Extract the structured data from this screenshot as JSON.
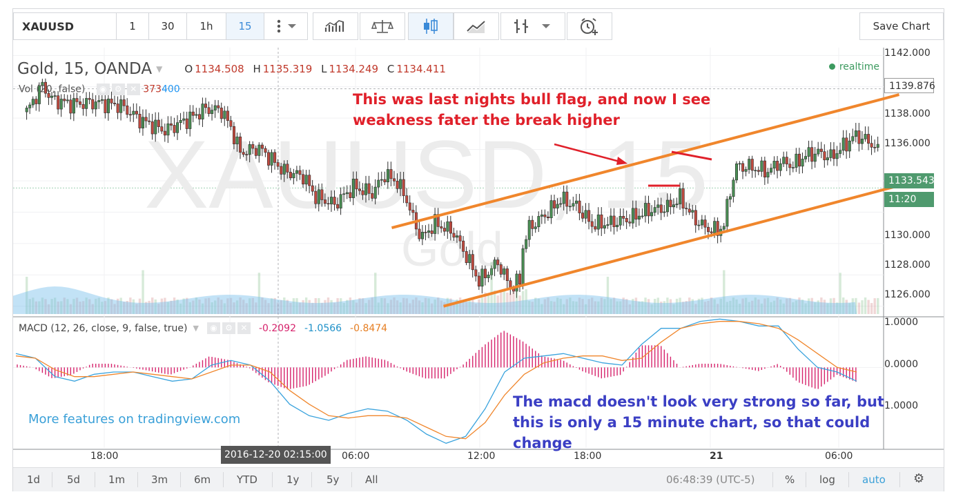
{
  "toolbar": {
    "symbol": "XAUUSD",
    "intervals": [
      "1",
      "30",
      "1h",
      "15"
    ],
    "active_interval": "15",
    "save_label": "Save Chart"
  },
  "legend": {
    "title": "Gold, 15, OANDA",
    "o_label": "O",
    "o": "1134.508",
    "h_label": "H",
    "h": "1135.319",
    "l_label": "L",
    "l": "1134.249",
    "c_label": "C",
    "c": "1134.411",
    "vol_label": "Vol (20, false)",
    "vol_v1": "373",
    "vol_v2": "400",
    "macd_label": "MACD (12, 26, close, 9, false, true)",
    "macd_hist": "-0.2092",
    "macd_line": "-1.0566",
    "macd_signal": "-0.8474",
    "realtime": "realtime"
  },
  "watermark": {
    "big": "XAUUSD, 15",
    "small": "Gold"
  },
  "annotations": {
    "red_text": "This was last nights bull flag, and now I see weakness fater the break higher",
    "blue_text": "The macd doesn't look very strong so far, but this is only a 15 minute chart, so that could change",
    "promo": "More features on tradingview.com"
  },
  "price_axis": [
    "1142.000",
    "1138.000",
    "1136.000",
    "1130.000",
    "1128.000",
    "1126.000"
  ],
  "price_tags": {
    "crosshair": "1139.876",
    "last": "1133.543",
    "countdown": "11:20"
  },
  "macd_axis": [
    "1.0000",
    "0.0000",
    "1.0000"
  ],
  "time_axis": [
    "18:00",
    "06:00",
    "12:00",
    "18:00",
    "21",
    "06:00"
  ],
  "crosshair_time": "2016-12-20 02:15:00",
  "bottombar": {
    "ranges": [
      "1d",
      "5d",
      "1m",
      "3m",
      "6m",
      "YTD",
      "1y",
      "5y",
      "All"
    ],
    "clock": "06:48:39 (UTC-5)",
    "percent": "%",
    "log": "log",
    "auto": "auto"
  },
  "colors": {
    "up": "#4a8f54",
    "down": "#c24a3f",
    "trendline": "#f0862c",
    "macd_line": "#3aa3dd",
    "signal_line": "#f0862c",
    "histogram": "#d6226b"
  },
  "chart_data": [
    {
      "type": "candlestick",
      "title": "Gold, 15, OANDA",
      "ylim": [
        1125.5,
        1142.5
      ],
      "x_start": "2016-12-19 14:00",
      "x_end": "2016-12-21 07:00",
      "trendlines": [
        {
          "from": [
            "2016-12-20 07:45",
            1131.0
          ],
          "to": [
            "2016-12-21 08:15",
            1139.5
          ]
        },
        {
          "from": [
            "2016-12-20 10:15",
            1126.0
          ],
          "to": [
            "2016-12-21 08:15",
            1133.7
          ]
        }
      ],
      "last_price": 1133.543
    },
    {
      "type": "line",
      "title": "MACD (12, 26, close, 9, false, true)",
      "ylim": [
        -1.75,
        1.1
      ],
      "series": [
        {
          "name": "MACD",
          "values": [
            0.3,
            0.2,
            -0.2,
            -0.3,
            -0.15,
            -0.1,
            -0.1,
            -0.2,
            -0.3,
            -0.25,
            0.05,
            0.15,
            0.05,
            -0.3,
            -0.8,
            -1.05,
            -1.15,
            -1.0,
            -0.9,
            -0.95,
            -1.15,
            -1.45,
            -1.65,
            -1.5,
            -0.9,
            -0.1,
            0.2,
            0.25,
            0.3,
            0.2,
            0.1,
            0.05,
            0.5,
            0.85,
            0.85,
            1.0,
            1.05,
            1.0,
            0.9,
            0.9,
            0.4,
            0.0,
            -0.1,
            -0.3
          ]
        },
        {
          "name": "Signal",
          "values": [
            0.25,
            0.2,
            -0.05,
            -0.2,
            -0.2,
            -0.15,
            -0.1,
            -0.15,
            -0.2,
            -0.25,
            -0.1,
            0.05,
            0.05,
            -0.1,
            -0.5,
            -0.8,
            -1.05,
            -1.1,
            -1.05,
            -1.05,
            -1.1,
            -1.3,
            -1.5,
            -1.55,
            -1.2,
            -0.6,
            -0.15,
            0.1,
            0.2,
            0.25,
            0.25,
            0.15,
            0.2,
            0.55,
            0.85,
            0.95,
            1.0,
            1.0,
            0.95,
            0.85,
            0.6,
            0.3,
            0.0,
            -0.1
          ]
        }
      ]
    }
  ]
}
